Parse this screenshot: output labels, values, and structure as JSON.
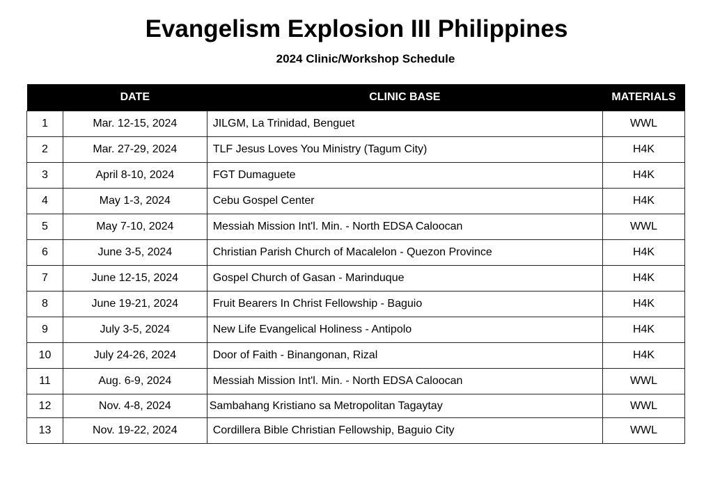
{
  "title": "Evangelism Explosion III Philippines",
  "subtitle": "2024 Clinic/Workshop Schedule",
  "table": {
    "headers": [
      "",
      "DATE",
      "CLINIC BASE",
      "MATERIALS"
    ],
    "rows": [
      {
        "no": "1",
        "date": "Mar. 12-15, 2024",
        "base": "JILGM, La Trinidad,  Benguet",
        "materials": "WWL"
      },
      {
        "no": "2",
        "date": "Mar. 27-29, 2024",
        "base": "TLF Jesus Loves You Ministry (Tagum City)",
        "materials": "H4K"
      },
      {
        "no": "3",
        "date": "April 8-10, 2024",
        "base": "FGT Dumaguete",
        "materials": "H4K"
      },
      {
        "no": "4",
        "date": "May 1-3, 2024",
        "base": "Cebu Gospel Center",
        "materials": "H4K"
      },
      {
        "no": "5",
        "date": "May 7-10, 2024",
        "base": "Messiah Mission Int'l. Min. - North EDSA Caloocan",
        "materials": "WWL"
      },
      {
        "no": "6",
        "date": "June 3-5, 2024",
        "base": "Christian Parish Church of Macalelon -  Quezon Province",
        "materials": "H4K"
      },
      {
        "no": "7",
        "date": "June 12-15, 2024",
        "base": "Gospel Church of Gasan - Marinduque",
        "materials": "H4K"
      },
      {
        "no": "8",
        "date": "June 19-21, 2024",
        "base": "Fruit Bearers In Christ Fellowship - Baguio",
        "materials": "H4K"
      },
      {
        "no": "9",
        "date": "July 3-5, 2024",
        "base": "New Life  Evangelical Holiness - Antipolo",
        "materials": "H4K"
      },
      {
        "no": "10",
        "date": "July 24-26, 2024",
        "base": "Door of Faith - Binangonan, Rizal",
        "materials": "H4K"
      },
      {
        "no": "11",
        "date": "Aug. 6-9, 2024",
        "base": "Messiah Mission Int'l. Min. - North EDSA Caloocan",
        "materials": "WWL"
      },
      {
        "no": "12",
        "date": "Nov. 4-8, 2024",
        "base": "Sambahang Kristiano sa Metropolitan Tagaytay",
        "materials": "WWL"
      },
      {
        "no": "13",
        "date": "Nov. 19-22, 2024",
        "base": "Cordillera Bible Christian Fellowship, Baguio City",
        "materials": "WWL"
      }
    ]
  }
}
